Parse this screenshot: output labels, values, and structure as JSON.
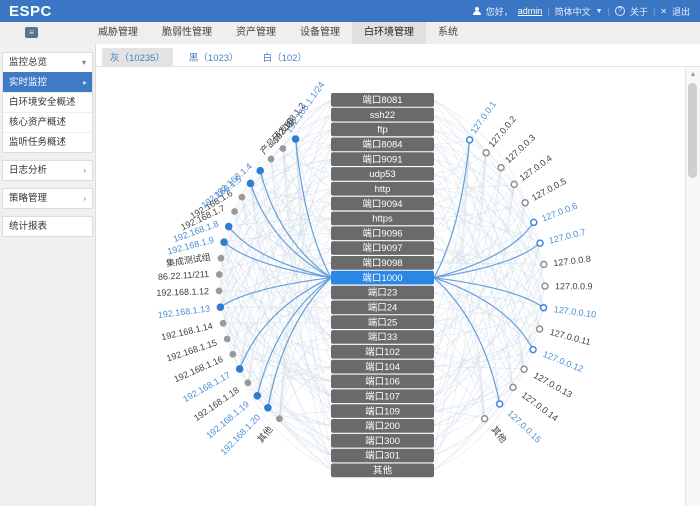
{
  "header": {
    "logo": "ESPC",
    "greeting": "您好，",
    "username": "admin",
    "language": "简体中文",
    "about": "关于",
    "logout": "退出"
  },
  "nav": {
    "items": [
      {
        "label": "威胁管理",
        "active": false
      },
      {
        "label": "脆弱性管理",
        "active": false
      },
      {
        "label": "资产管理",
        "active": false
      },
      {
        "label": "设备管理",
        "active": false
      },
      {
        "label": "白环境管理",
        "active": true
      },
      {
        "label": "系统",
        "active": false
      }
    ]
  },
  "sidebar": {
    "sections": [
      {
        "label": "监控总览",
        "caret": "▾",
        "expanded": true,
        "items": [
          {
            "label": "实时监控",
            "active": true
          },
          {
            "label": "白环境安全概述",
            "active": false
          },
          {
            "label": "核心资产概述",
            "active": false
          },
          {
            "label": "监听任务概述",
            "active": false
          }
        ]
      },
      {
        "label": "日志分析",
        "caret": "›",
        "expanded": false,
        "items": []
      },
      {
        "label": "策略管理",
        "caret": "›",
        "expanded": false,
        "items": []
      },
      {
        "label": "统计报表",
        "caret": "",
        "expanded": false,
        "items": []
      }
    ]
  },
  "tabs": [
    {
      "key": "gray",
      "label": "灰（10235）",
      "active": true
    },
    {
      "key": "black",
      "label": "黑（1023）",
      "active": false
    },
    {
      "key": "white",
      "label": "白（102）",
      "active": false
    }
  ],
  "graph": {
    "center_nodes": [
      "端口8081",
      "ssh22",
      "ftp",
      "端口8084",
      "端口9091",
      "udp53",
      "http",
      "端口9094",
      "https",
      "端口9096",
      "端口9097",
      "端口9098",
      "端口1000",
      "端口23",
      "端口24",
      "端口25",
      "端口33",
      "端口102",
      "端口104",
      "端口106",
      "端口107",
      "端口109",
      "端口200",
      "端口300",
      "端口301",
      "其他"
    ],
    "selected_center": "端口1000",
    "left_nodes": [
      {
        "label": "192.168.1.1/24",
        "highlight": true
      },
      {
        "label": "192.168.1.2",
        "highlight": false
      },
      {
        "label": "产品研发组",
        "highlight": false
      },
      {
        "label": "192.168.1.4",
        "highlight": true
      },
      {
        "label": "192.168.1.5",
        "highlight": true
      },
      {
        "label": "192.168.1.6",
        "highlight": false
      },
      {
        "label": "192.168.1.7",
        "highlight": false
      },
      {
        "label": "192.168.1.8",
        "highlight": true
      },
      {
        "label": "192.168.1.9",
        "highlight": true
      },
      {
        "label": "集成测试组",
        "highlight": false
      },
      {
        "label": "86.22.11/211",
        "highlight": false
      },
      {
        "label": "192.168.1.12",
        "highlight": false
      },
      {
        "label": "192.168.1.13",
        "highlight": true
      },
      {
        "label": "192.168.1.14",
        "highlight": false
      },
      {
        "label": "192.168.1.15",
        "highlight": false
      },
      {
        "label": "192.168.1.16",
        "highlight": false
      },
      {
        "label": "192.168.1.17",
        "highlight": true
      },
      {
        "label": "192.168.1.18",
        "highlight": false
      },
      {
        "label": "192.168.1.19",
        "highlight": true
      },
      {
        "label": "192.168.1.20",
        "highlight": true
      },
      {
        "label": "其他",
        "highlight": false
      }
    ],
    "right_nodes": [
      {
        "label": "127.0.0.1",
        "highlight": true
      },
      {
        "label": "127.0.0.2",
        "highlight": false
      },
      {
        "label": "127.0.0.3",
        "highlight": false
      },
      {
        "label": "127.0.0.4",
        "highlight": false
      },
      {
        "label": "127.0.0.5",
        "highlight": false
      },
      {
        "label": "127.0.0.6",
        "highlight": true
      },
      {
        "label": "127.0.0.7",
        "highlight": true
      },
      {
        "label": "127.0.0.8",
        "highlight": false
      },
      {
        "label": "127.0.0.9",
        "highlight": false
      },
      {
        "label": "127.0.0.10",
        "highlight": true
      },
      {
        "label": "127.0.0.11",
        "highlight": false
      },
      {
        "label": "127.0.0.12",
        "highlight": true
      },
      {
        "label": "127.0.0.13",
        "highlight": false
      },
      {
        "label": "127.0.0.14",
        "highlight": false
      },
      {
        "label": "127.0.0.15",
        "highlight": true
      },
      {
        "label": "其他",
        "highlight": false
      }
    ],
    "colors": {
      "accent_blue": "#3b76c4",
      "selected_port": "#2b87e4",
      "port_gray": "#6a6a6a",
      "edge_blue": "#5e9ad8",
      "edge_faint": "#c3d2e2",
      "label_blue": "#4a8ed7",
      "label_dark": "#3f3f3f",
      "node_gray": "#9a9a9a"
    }
  }
}
